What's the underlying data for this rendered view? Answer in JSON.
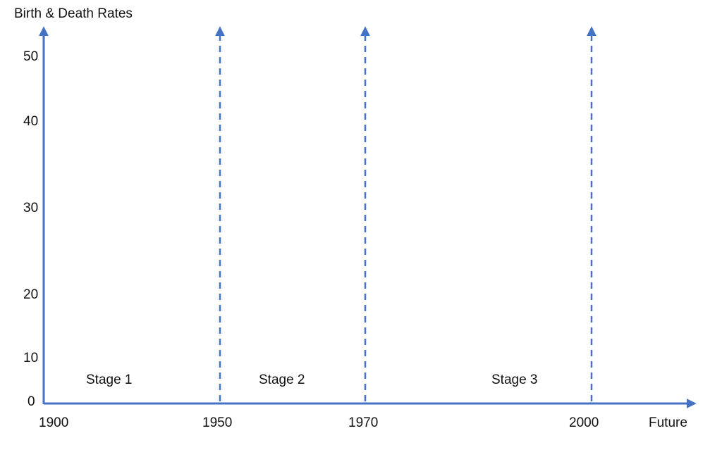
{
  "colors": {
    "axis": "#4472c4",
    "text": "#111111",
    "background": "#ffffff"
  },
  "axis_title": "Birth & Death Rates",
  "y_ticks": [
    "50",
    "40",
    "30",
    "20",
    "10",
    "0"
  ],
  "x_ticks": [
    "1900",
    "1950",
    "1970",
    "2000",
    "Future"
  ],
  "stages": [
    "Stage 1",
    "Stage 2",
    "Stage 3"
  ],
  "divider_years": [
    "1950",
    "1970",
    "2000"
  ]
}
